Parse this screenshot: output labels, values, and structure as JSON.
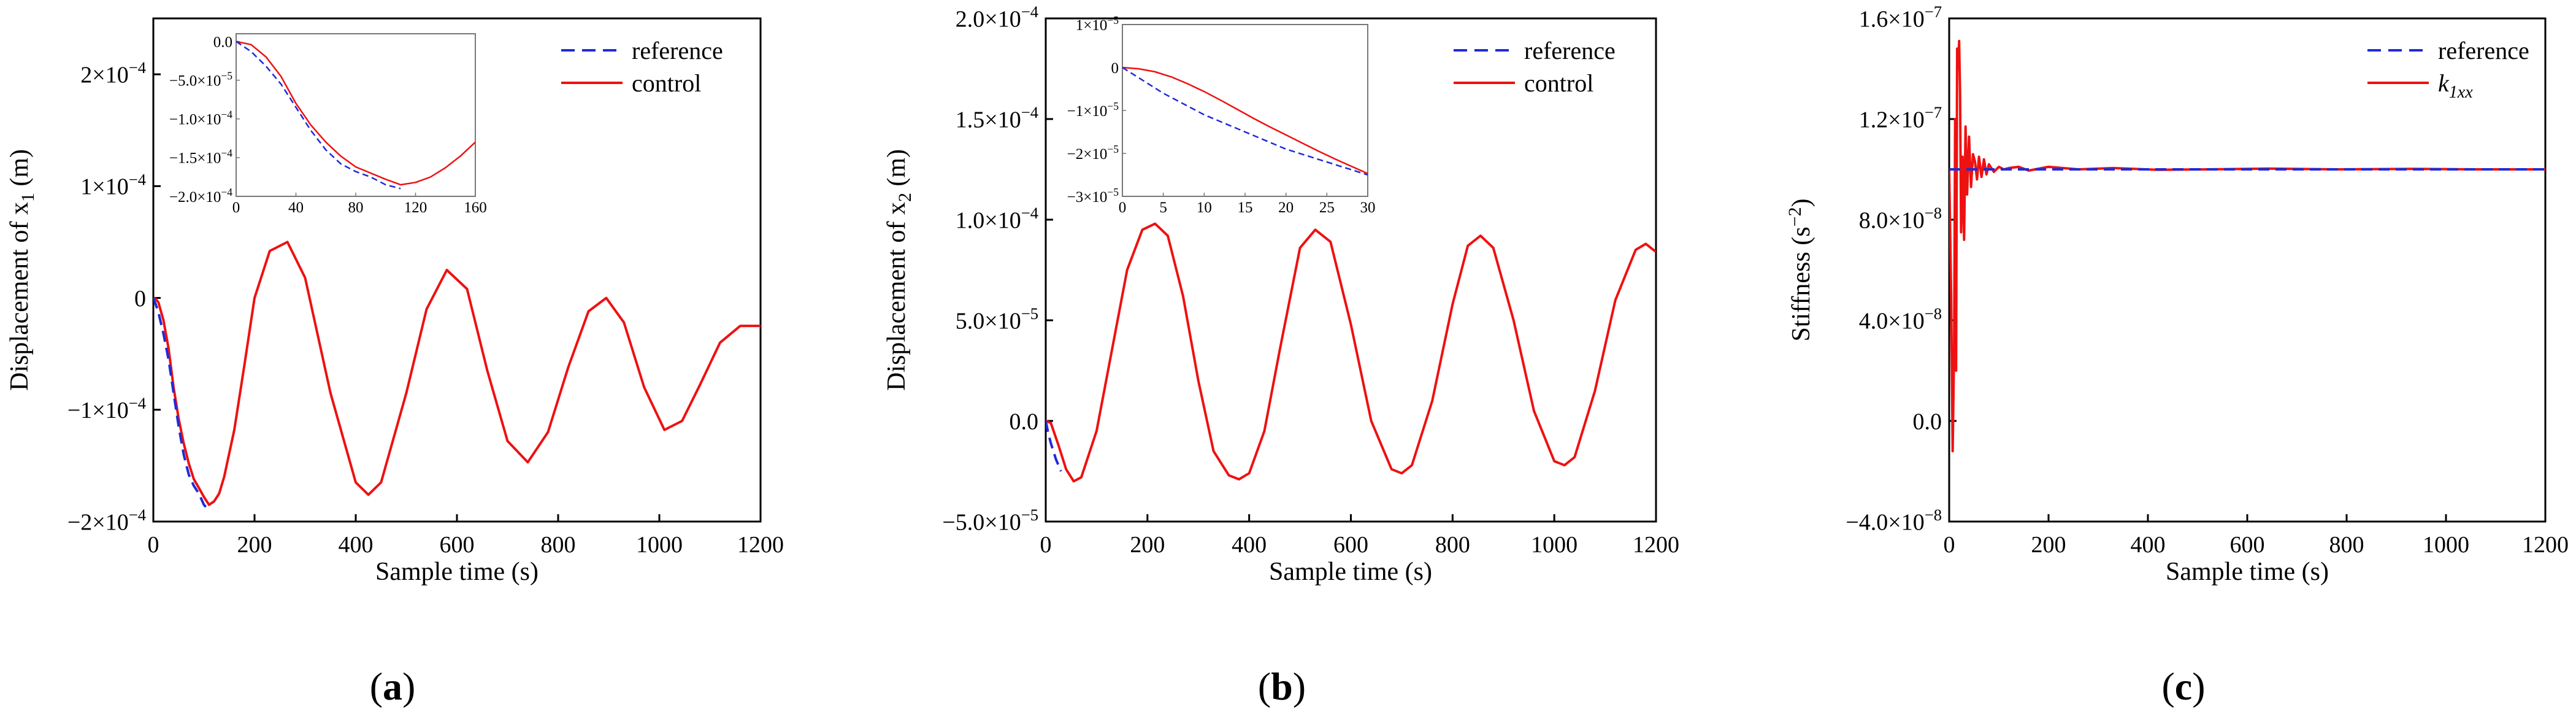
{
  "colors": {
    "reference": "#1f2bd8",
    "control": "#ee1111",
    "axis": "#000000"
  },
  "chart_data": [
    {
      "type": "line",
      "panel_label": "(a)",
      "panel_letter": "a",
      "xlabel": "Sample time (s)",
      "ylabel": "Displacement of x",
      "ylabel_sub": "1",
      "ylabel_unit": " (m)",
      "xlim": [
        0,
        1200
      ],
      "ylim": [
        -0.0002,
        0.00025
      ],
      "xticks": [
        0,
        200,
        400,
        600,
        800,
        1000,
        1200
      ],
      "xtick_labels": [
        "0",
        "200",
        "400",
        "600",
        "800",
        "1000",
        "1200"
      ],
      "yticks": [
        -0.0002,
        -0.0001,
        0,
        0.0001,
        0.0002
      ],
      "ytick_labels": [
        {
          "base": "−2×10",
          "exp": "−4"
        },
        {
          "base": "−1×10",
          "exp": "−4"
        },
        {
          "base": "0",
          "exp": ""
        },
        {
          "base": "1×10",
          "exp": "−4"
        },
        {
          "base": "2×10",
          "exp": "−4"
        }
      ],
      "legend": [
        {
          "name": "reference",
          "sub": "",
          "style": "dashed"
        },
        {
          "name": "control",
          "sub": "",
          "style": "solid"
        }
      ],
      "series": [
        {
          "name": "reference",
          "x": [
            0,
            5,
            10,
            20,
            30,
            40,
            50,
            60,
            70,
            80,
            90,
            100,
            110
          ],
          "values": [
            0,
            -6e-06,
            -1.3e-05,
            -3.2e-05,
            -5.5e-05,
            -8.5e-05,
            -0.000115,
            -0.00014,
            -0.000158,
            -0.000168,
            -0.000175,
            -0.000185,
            -0.00019
          ]
        },
        {
          "name": "control",
          "x": [
            0,
            5,
            10,
            20,
            30,
            40,
            50,
            60,
            70,
            80,
            90,
            100,
            110,
            120,
            130,
            140,
            160,
            180,
            200,
            230,
            265,
            300,
            350,
            400,
            425,
            450,
            500,
            540,
            580,
            620,
            660,
            700,
            740,
            780,
            820,
            860,
            895,
            930,
            970,
            1010,
            1045,
            1080,
            1120,
            1160,
            1190,
            1200
          ],
          "values": [
            0,
            -1e-06,
            -4e-06,
            -2e-05,
            -4.5e-05,
            -8e-05,
            -0.000108,
            -0.00013,
            -0.000148,
            -0.000162,
            -0.00017,
            -0.000178,
            -0.000185,
            -0.000182,
            -0.000175,
            -0.00016,
            -0.000118,
            -6e-05,
            0.0,
            4.2e-05,
            5e-05,
            1.8e-05,
            -8.5e-05,
            -0.000165,
            -0.000176,
            -0.000165,
            -8.5e-05,
            -1e-05,
            2.5e-05,
            8e-06,
            -6.5e-05,
            -0.000128,
            -0.000147,
            -0.00012,
            -6.2e-05,
            -1.2e-05,
            0.0,
            -2.2e-05,
            -8e-05,
            -0.000118,
            -0.00011,
            -7.8e-05,
            -4e-05,
            -2.5e-05,
            -2.5e-05,
            -2.5e-05
          ]
        }
      ],
      "inset": {
        "xlim": [
          0,
          160
        ],
        "ylim": [
          -0.0002,
          1e-05
        ],
        "xticks": [
          0,
          40,
          80,
          120,
          160
        ],
        "xtick_labels": [
          "0",
          "40",
          "80",
          "120",
          "160"
        ],
        "yticks": [
          0,
          -5e-05,
          -0.0001,
          -0.00015,
          -0.0002
        ],
        "ytick_labels": [
          {
            "base": "0.0",
            "exp": ""
          },
          {
            "base": "−5.0×10",
            "exp": "−5"
          },
          {
            "base": "−1.0×10",
            "exp": "−4"
          },
          {
            "base": "−1.5×10",
            "exp": "−4"
          },
          {
            "base": "−2.0×10",
            "exp": "−4"
          }
        ],
        "series": [
          {
            "name": "reference",
            "x": [
              0,
              10,
              20,
              30,
              40,
              50,
              60,
              70,
              80,
              90,
              100,
              110
            ],
            "values": [
              0,
              -1.3e-05,
              -3.2e-05,
              -5.5e-05,
              -8.5e-05,
              -0.000115,
              -0.00014,
              -0.000158,
              -0.000168,
              -0.000175,
              -0.000185,
              -0.00019
            ]
          },
          {
            "name": "control",
            "x": [
              0,
              10,
              20,
              30,
              40,
              50,
              60,
              70,
              80,
              90,
              100,
              110,
              120,
              130,
              140,
              150,
              160
            ],
            "values": [
              0,
              -4e-06,
              -2e-05,
              -4.5e-05,
              -8e-05,
              -0.000108,
              -0.00013,
              -0.000148,
              -0.000162,
              -0.00017,
              -0.000178,
              -0.000185,
              -0.000182,
              -0.000175,
              -0.000163,
              -0.000148,
              -0.00013
            ]
          }
        ]
      }
    },
    {
      "type": "line",
      "panel_label": "(b)",
      "panel_letter": "b",
      "xlabel": "Sample time (s)",
      "ylabel": "Displacement of x",
      "ylabel_sub": "2",
      "ylabel_unit": " (m)",
      "xlim": [
        0,
        1200
      ],
      "ylim": [
        -5e-05,
        0.0002
      ],
      "xticks": [
        0,
        200,
        400,
        600,
        800,
        1000,
        1200
      ],
      "xtick_labels": [
        "0",
        "200",
        "400",
        "600",
        "800",
        "1000",
        "1200"
      ],
      "yticks": [
        -5e-05,
        0,
        5e-05,
        0.0001,
        0.00015,
        0.0002
      ],
      "ytick_labels": [
        {
          "base": "−5.0×10",
          "exp": "−5"
        },
        {
          "base": "0.0",
          "exp": ""
        },
        {
          "base": "5.0×10",
          "exp": "−5"
        },
        {
          "base": "1.0×10",
          "exp": "−4"
        },
        {
          "base": "1.5×10",
          "exp": "−4"
        },
        {
          "base": "2.0×10",
          "exp": "−4"
        }
      ],
      "legend": [
        {
          "name": "reference",
          "sub": "",
          "style": "dashed"
        },
        {
          "name": "control",
          "sub": "",
          "style": "solid"
        }
      ],
      "series": [
        {
          "name": "reference",
          "x": [
            0,
            5,
            10,
            15,
            20,
            25,
            30
          ],
          "values": [
            0,
            -6e-06,
            -1.1e-05,
            -1.5e-05,
            -1.9e-05,
            -2.2e-05,
            -2.5e-05
          ]
        },
        {
          "name": "control",
          "x": [
            0,
            10,
            25,
            40,
            55,
            70,
            100,
            130,
            160,
            190,
            215,
            240,
            270,
            300,
            330,
            360,
            380,
            400,
            430,
            460,
            500,
            530,
            560,
            600,
            640,
            680,
            700,
            720,
            760,
            800,
            830,
            855,
            880,
            920,
            960,
            1000,
            1020,
            1040,
            1080,
            1120,
            1160,
            1180,
            1200
          ],
          "values": [
            0,
            -1e-06,
            -1.2e-05,
            -2.4e-05,
            -3e-05,
            -2.8e-05,
            -5e-06,
            3.5e-05,
            7.5e-05,
            9.5e-05,
            9.8e-05,
            9.2e-05,
            6.2e-05,
            2e-05,
            -1.5e-05,
            -2.7e-05,
            -2.9e-05,
            -2.6e-05,
            -5e-06,
            3.5e-05,
            8.6e-05,
            9.5e-05,
            8.9e-05,
            4.8e-05,
            0.0,
            -2.4e-05,
            -2.6e-05,
            -2.2e-05,
            1e-05,
            5.8e-05,
            8.7e-05,
            9.2e-05,
            8.6e-05,
            5e-05,
            5e-06,
            -2e-05,
            -2.2e-05,
            -1.8e-05,
            1.5e-05,
            6e-05,
            8.5e-05,
            8.8e-05,
            8.4e-05
          ]
        }
      ],
      "inset": {
        "xlim": [
          0,
          30
        ],
        "ylim": [
          -3e-05,
          1e-05
        ],
        "xticks": [
          0,
          5,
          10,
          15,
          20,
          25,
          30
        ],
        "xtick_labels": [
          "0",
          "5",
          "10",
          "15",
          "20",
          "25",
          "30"
        ],
        "yticks": [
          1e-05,
          0,
          -1e-05,
          -2e-05,
          -3e-05
        ],
        "ytick_labels": [
          {
            "base": "1×10",
            "exp": "−5"
          },
          {
            "base": "0",
            "exp": ""
          },
          {
            "base": "−1×10",
            "exp": "−5"
          },
          {
            "base": "−2×10",
            "exp": "−5"
          },
          {
            "base": "−3×10",
            "exp": "−5"
          }
        ],
        "series": [
          {
            "name": "reference",
            "x": [
              0,
              5,
              10,
              15,
              20,
              25,
              30
            ],
            "values": [
              0,
              -6e-06,
              -1.1e-05,
              -1.5e-05,
              -1.9e-05,
              -2.2e-05,
              -2.5e-05
            ]
          },
          {
            "name": "control",
            "x": [
              0,
              2,
              4,
              6,
              8,
              10,
              12,
              14,
              16,
              18,
              20,
              22,
              24,
              26,
              28,
              30
            ],
            "values": [
              0,
              -3e-07,
              -1e-06,
              -2.2e-06,
              -3.8e-06,
              -5.6e-06,
              -7.6e-06,
              -9.7e-06,
              -1.18e-05,
              -1.38e-05,
              -1.57e-05,
              -1.76e-05,
              -1.95e-05,
              -2.13e-05,
              -2.3e-05,
              -2.47e-05
            ]
          }
        ]
      }
    },
    {
      "type": "line",
      "panel_label": "(c)",
      "panel_letter": "c",
      "xlabel": "Sample time (s)",
      "ylabel": "Stiffness (s",
      "ylabel_sup": "−2",
      "ylabel_unit": ")",
      "xlim": [
        0,
        1200
      ],
      "ylim": [
        -4e-08,
        1.6e-07
      ],
      "xticks": [
        0,
        200,
        400,
        600,
        800,
        1000,
        1200
      ],
      "xtick_labels": [
        "0",
        "200",
        "400",
        "600",
        "800",
        "1000",
        "1200"
      ],
      "yticks": [
        -4e-08,
        0,
        4e-08,
        8e-08,
        1.2e-07,
        1.6e-07
      ],
      "ytick_labels": [
        {
          "base": "−4.0×10",
          "exp": "−8"
        },
        {
          "base": "0.0",
          "exp": ""
        },
        {
          "base": "4.0×10",
          "exp": "−8"
        },
        {
          "base": "8.0×10",
          "exp": "−8"
        },
        {
          "base": "1.2×10",
          "exp": "−7"
        },
        {
          "base": "1.6×10",
          "exp": "−7"
        }
      ],
      "legend": [
        {
          "name": "reference",
          "sub": "",
          "style": "dashed"
        },
        {
          "name": "k",
          "sub": "1xx",
          "style": "solid"
        }
      ],
      "series": [
        {
          "name": "reference",
          "x": [
            0,
            1200
          ],
          "values": [
            1e-07,
            1e-07
          ]
        },
        {
          "name": "k1xx",
          "x": [
            0,
            4,
            7,
            10,
            12,
            14,
            16,
            18,
            20,
            22,
            24,
            27,
            30,
            33,
            36,
            40,
            44,
            48,
            52,
            56,
            60,
            65,
            70,
            75,
            80,
            90,
            100,
            110,
            120,
            140,
            160,
            200,
            260,
            330,
            420,
            520,
            640,
            780,
            930,
            1060,
            1200
          ],
          "values": [
            1e-07,
            5e-08,
            -1.2e-08,
            3e-08,
            1.2e-07,
            2e-08,
            1.48e-07,
            1.4e-07,
            1.51e-07,
            1.3e-07,
            7.5e-08,
            1.05e-07,
            7.2e-08,
            1.17e-07,
            9e-08,
            1.13e-07,
            9.3e-08,
            1.06e-07,
            1.03e-07,
            9.6e-08,
            1.05e-07,
            9.7e-08,
            1.04e-07,
            9.8e-08,
            1.02e-07,
            9.9e-08,
            1.01e-07,
            1e-07,
            1.005e-07,
            1.01e-07,
            9.95e-08,
            1.01e-07,
            1e-07,
            1.005e-07,
            9.98e-08,
            1e-07,
            1.003e-07,
            1e-07,
            1.002e-07,
            1e-07,
            1e-07
          ]
        }
      ]
    }
  ]
}
